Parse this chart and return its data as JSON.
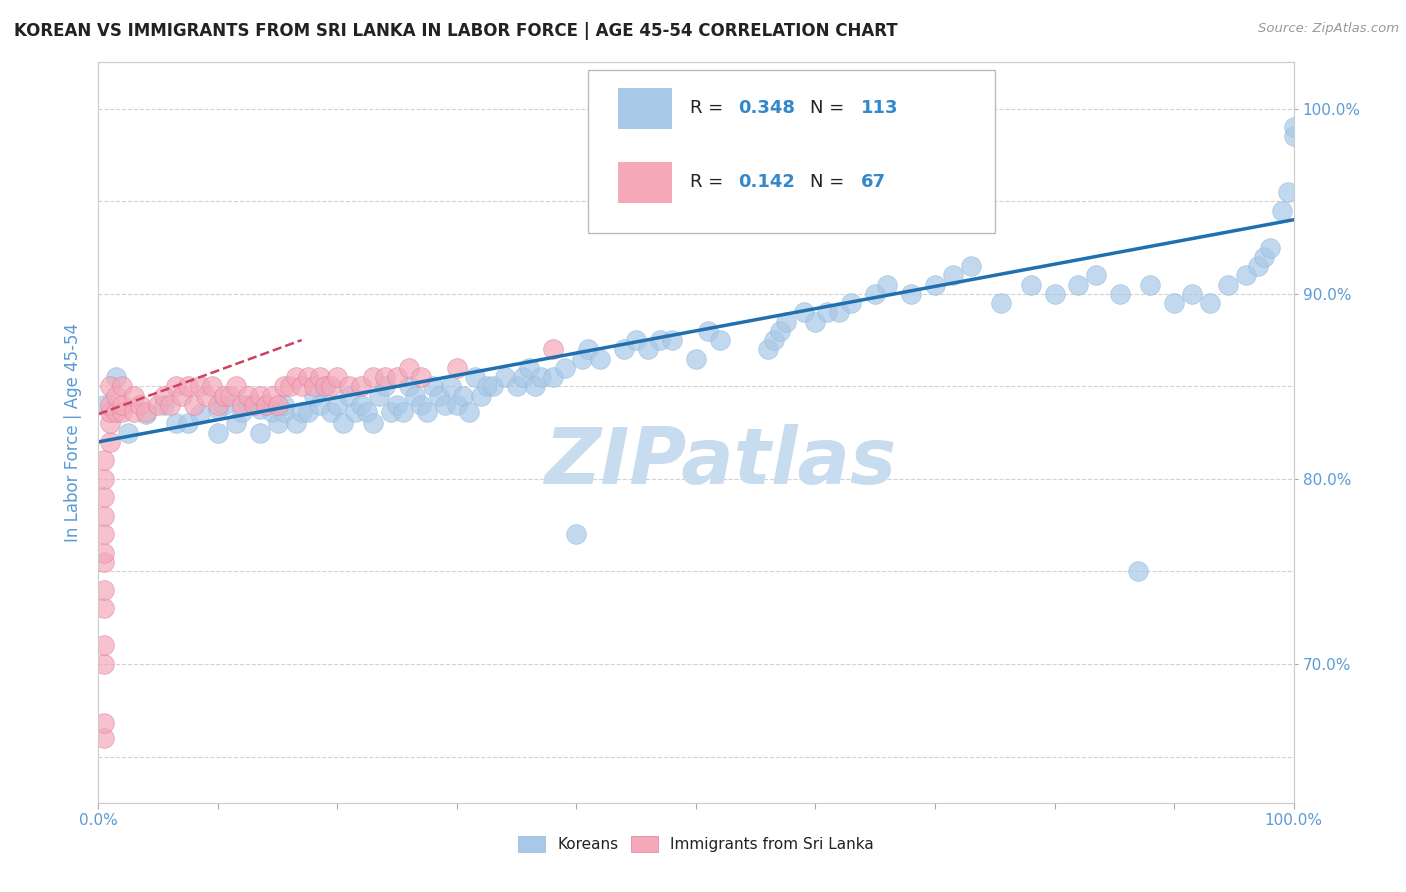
{
  "title": "KOREAN VS IMMIGRANTS FROM SRI LANKA IN LABOR FORCE | AGE 45-54 CORRELATION CHART",
  "source_text": "Source: ZipAtlas.com",
  "ylabel": "In Labor Force | Age 45-54",
  "xlim": [
    0.0,
    1.0
  ],
  "ylim": [
    0.625,
    1.025
  ],
  "xtick_positions": [
    0.0,
    0.1,
    0.2,
    0.3,
    0.4,
    0.5,
    0.6,
    0.7,
    0.8,
    0.9,
    1.0
  ],
  "ytick_values": [
    0.65,
    0.7,
    0.75,
    0.8,
    0.85,
    0.9,
    0.95,
    1.0
  ],
  "ytick_labels_left": [
    "",
    "",
    "",
    "",
    "",
    "",
    "",
    ""
  ],
  "right_ytick_values": [
    0.7,
    0.8,
    0.9,
    1.0
  ],
  "right_ytick_labels": [
    "70.0%",
    "80.0%",
    "90.0%",
    "100.0%"
  ],
  "blue_color": "#A8C8E8",
  "pink_color": "#F4A8B8",
  "trend_blue_color": "#2070B0",
  "trend_pink_color": "#D04060",
  "watermark_color": "#C8DCF0",
  "grid_color": "#CCCCCC",
  "background_color": "#FFFFFF",
  "blue_R": "0.348",
  "blue_N": "113",
  "pink_R": "0.142",
  "pink_N": "67",
  "legend_R_color": "#000000",
  "legend_val_color": "#3388CC",
  "title_fontsize": 12,
  "axis_label_color": "#5B9BD5",
  "tick_label_color": "#5B9BD5",
  "blue_trend_x0": 0.0,
  "blue_trend_x1": 1.0,
  "blue_trend_y0": 0.82,
  "blue_trend_y1": 0.94,
  "pink_trend_x0": 0.0,
  "pink_trend_x1": 0.17,
  "pink_trend_y0": 0.835,
  "pink_trend_y1": 0.875,
  "blue_scatter_x": [
    0.005,
    0.015,
    0.025,
    0.04,
    0.055,
    0.065,
    0.075,
    0.085,
    0.1,
    0.1,
    0.105,
    0.115,
    0.12,
    0.125,
    0.135,
    0.135,
    0.14,
    0.145,
    0.15,
    0.155,
    0.155,
    0.165,
    0.17,
    0.175,
    0.18,
    0.185,
    0.19,
    0.195,
    0.2,
    0.205,
    0.21,
    0.215,
    0.22,
    0.225,
    0.23,
    0.235,
    0.24,
    0.245,
    0.25,
    0.255,
    0.26,
    0.265,
    0.27,
    0.275,
    0.28,
    0.285,
    0.29,
    0.295,
    0.3,
    0.305,
    0.31,
    0.315,
    0.32,
    0.325,
    0.33,
    0.34,
    0.35,
    0.355,
    0.36,
    0.365,
    0.37,
    0.38,
    0.39,
    0.4,
    0.405,
    0.41,
    0.42,
    0.43,
    0.44,
    0.45,
    0.46,
    0.47,
    0.48,
    0.5,
    0.51,
    0.52,
    0.53,
    0.54,
    0.555,
    0.56,
    0.565,
    0.57,
    0.575,
    0.59,
    0.6,
    0.61,
    0.62,
    0.63,
    0.65,
    0.66,
    0.68,
    0.7,
    0.715,
    0.73,
    0.755,
    0.78,
    0.8,
    0.82,
    0.835,
    0.855,
    0.87,
    0.88,
    0.9,
    0.915,
    0.93,
    0.945,
    0.96,
    0.97,
    0.975,
    0.98,
    0.99,
    0.995,
    1.0,
    1.0
  ],
  "blue_scatter_y": [
    0.84,
    0.855,
    0.825,
    0.835,
    0.84,
    0.83,
    0.83,
    0.835,
    0.825,
    0.838,
    0.84,
    0.83,
    0.836,
    0.84,
    0.825,
    0.838,
    0.84,
    0.836,
    0.83,
    0.836,
    0.84,
    0.83,
    0.836,
    0.836,
    0.845,
    0.84,
    0.85,
    0.836,
    0.84,
    0.83,
    0.845,
    0.836,
    0.84,
    0.836,
    0.83,
    0.845,
    0.85,
    0.836,
    0.84,
    0.836,
    0.85,
    0.845,
    0.84,
    0.836,
    0.85,
    0.845,
    0.84,
    0.85,
    0.84,
    0.845,
    0.836,
    0.855,
    0.845,
    0.85,
    0.85,
    0.855,
    0.85,
    0.855,
    0.86,
    0.85,
    0.855,
    0.855,
    0.86,
    0.77,
    0.865,
    0.87,
    0.865,
    0.955,
    0.87,
    0.875,
    0.87,
    0.875,
    0.875,
    0.865,
    0.88,
    0.875,
    0.955,
    0.96,
    0.965,
    0.87,
    0.875,
    0.88,
    0.885,
    0.89,
    0.885,
    0.89,
    0.89,
    0.895,
    0.9,
    0.905,
    0.9,
    0.905,
    0.91,
    0.915,
    0.895,
    0.905,
    0.9,
    0.905,
    0.91,
    0.9,
    0.75,
    0.905,
    0.895,
    0.9,
    0.895,
    0.905,
    0.91,
    0.915,
    0.92,
    0.925,
    0.945,
    0.955,
    0.985,
    0.99
  ],
  "pink_scatter_x": [
    0.005,
    0.005,
    0.005,
    0.005,
    0.005,
    0.005,
    0.005,
    0.005,
    0.005,
    0.005,
    0.005,
    0.005,
    0.005,
    0.01,
    0.01,
    0.01,
    0.01,
    0.01,
    0.015,
    0.015,
    0.02,
    0.02,
    0.02,
    0.03,
    0.03,
    0.035,
    0.04,
    0.05,
    0.055,
    0.06,
    0.065,
    0.07,
    0.075,
    0.08,
    0.085,
    0.09,
    0.095,
    0.1,
    0.105,
    0.11,
    0.115,
    0.12,
    0.125,
    0.13,
    0.135,
    0.14,
    0.145,
    0.15,
    0.155,
    0.16,
    0.165,
    0.17,
    0.175,
    0.18,
    0.185,
    0.19,
    0.195,
    0.2,
    0.21,
    0.22,
    0.23,
    0.24,
    0.25,
    0.26,
    0.27,
    0.3,
    0.38
  ],
  "pink_scatter_y": [
    0.66,
    0.668,
    0.7,
    0.71,
    0.73,
    0.74,
    0.755,
    0.76,
    0.77,
    0.78,
    0.79,
    0.8,
    0.81,
    0.82,
    0.83,
    0.836,
    0.84,
    0.85,
    0.836,
    0.845,
    0.836,
    0.84,
    0.85,
    0.836,
    0.845,
    0.84,
    0.836,
    0.84,
    0.845,
    0.84,
    0.85,
    0.845,
    0.85,
    0.84,
    0.85,
    0.845,
    0.85,
    0.84,
    0.845,
    0.845,
    0.85,
    0.84,
    0.845,
    0.84,
    0.845,
    0.84,
    0.845,
    0.84,
    0.85,
    0.85,
    0.855,
    0.85,
    0.855,
    0.85,
    0.855,
    0.85,
    0.85,
    0.855,
    0.85,
    0.85,
    0.855,
    0.855,
    0.855,
    0.86,
    0.855,
    0.86,
    0.87
  ]
}
